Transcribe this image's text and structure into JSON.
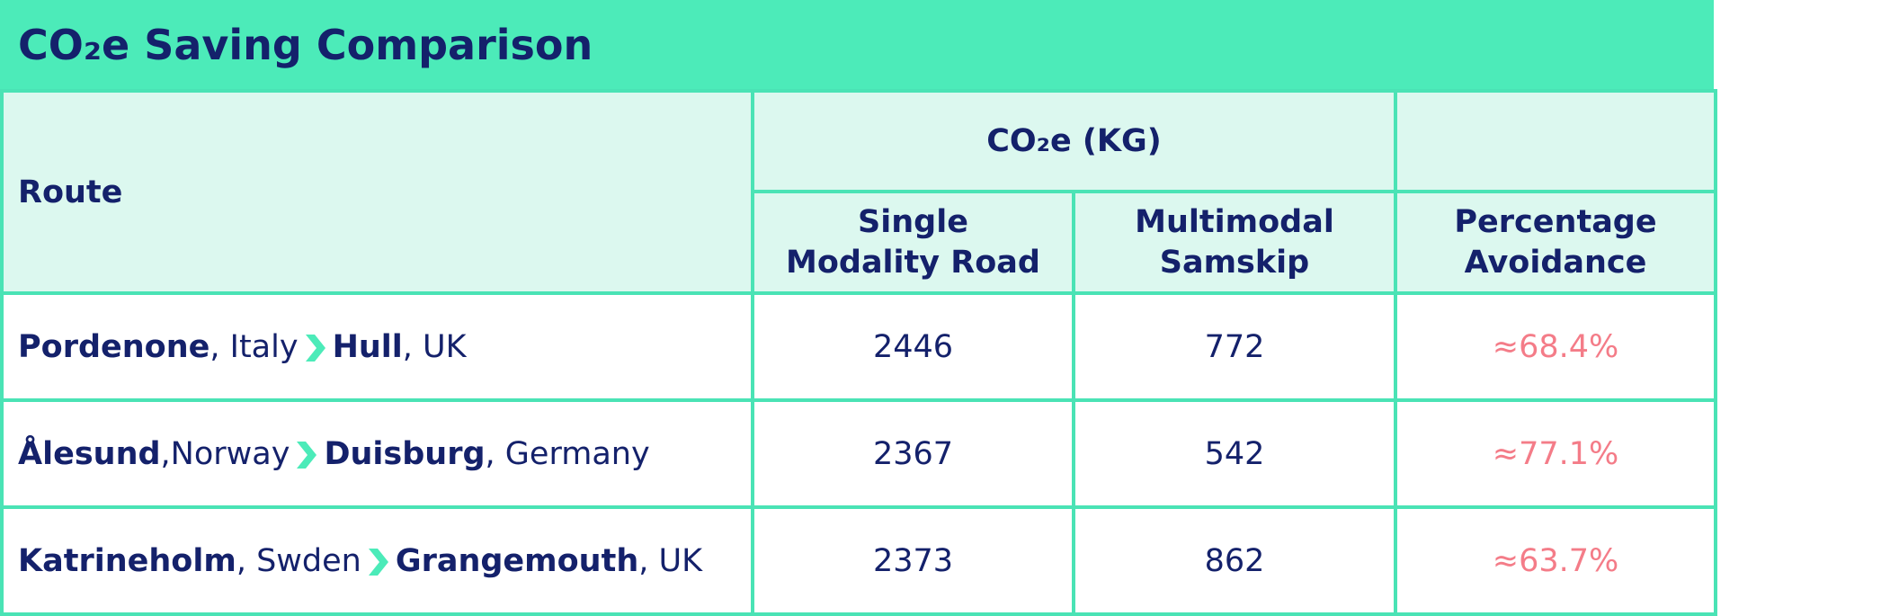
{
  "title": "CO₂e Saving Comparison",
  "table": {
    "group_header": "CO₂e (KG)",
    "columns": [
      "Route",
      "Single Modality Road",
      "Multimodal Samskip",
      "Percentage Avoidance"
    ],
    "rows": [
      {
        "origin": {
          "city": "Pordenone",
          "country": ", Italy"
        },
        "destination": {
          "city": "Hull",
          "country": ", UK"
        },
        "single_modality_road": 2446,
        "multimodal_samskip": 772,
        "percentage_avoidance": "≈68.4%"
      },
      {
        "origin": {
          "city": "Ålesund",
          "country": ",Norway"
        },
        "destination": {
          "city": "Duisburg",
          "country": ", Germany"
        },
        "single_modality_road": 2367,
        "multimodal_samskip": 542,
        "percentage_avoidance": "≈77.1%"
      },
      {
        "origin": {
          "city": "Katrineholm",
          "country": ", Swden"
        },
        "destination": {
          "city": "Grangemouth",
          "country": ", UK"
        },
        "single_modality_road": 2373,
        "multimodal_samskip": 862,
        "percentage_avoidance": "≈63.7%"
      }
    ]
  }
}
